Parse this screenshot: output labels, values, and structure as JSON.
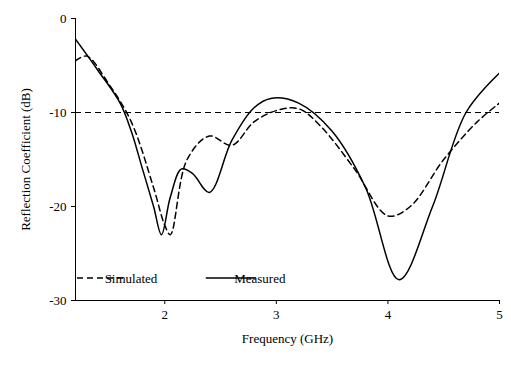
{
  "chart_data": {
    "type": "line",
    "x_label": "Frequency (GHz)",
    "y_label": "Reflection Coefficient (dB)",
    "xlim": [
      1.2,
      5
    ],
    "xticks": [
      2,
      3,
      4,
      5
    ],
    "ylim": [
      -30,
      0
    ],
    "yticks": [
      0,
      -10,
      -20,
      -30
    ],
    "legend": "lower left",
    "reference_lines": [
      {
        "y": -10,
        "color": "#000000",
        "line_style": "dashed"
      }
    ],
    "series": [
      {
        "name": "Simulated",
        "color": "#000000",
        "line_style": "dashed",
        "x": [
          1.2,
          1.3,
          1.5,
          1.7,
          1.9,
          2.0,
          2.05,
          2.2,
          2.4,
          2.6,
          2.8,
          3.0,
          3.2,
          3.4,
          3.7,
          4.0,
          4.2,
          4.5,
          4.8,
          5.0
        ],
        "values": [
          -4.5,
          -4.0,
          -7.0,
          -11.0,
          -18.0,
          -22.0,
          -23.0,
          -15.0,
          -12.5,
          -13.5,
          -11.0,
          -9.8,
          -9.6,
          -11.5,
          -16.0,
          -21.0,
          -20.0,
          -15.0,
          -11.0,
          -9.0
        ]
      },
      {
        "name": "Measured",
        "color": "#000000",
        "line_style": "solid",
        "x": [
          1.2,
          1.4,
          1.6,
          1.7,
          1.8,
          1.9,
          1.97,
          2.05,
          2.15,
          2.25,
          2.4,
          2.6,
          2.8,
          2.95,
          3.2,
          3.5,
          3.8,
          4.1,
          4.4,
          4.7,
          5.0
        ],
        "values": [
          -2.2,
          -5.5,
          -9.0,
          -12.0,
          -16.0,
          -20.0,
          -23.0,
          -19.0,
          -16.0,
          -16.5,
          -18.5,
          -13.0,
          -9.5,
          -8.5,
          -9.0,
          -12.0,
          -18.0,
          -27.8,
          -20.0,
          -10.0,
          -5.8
        ]
      }
    ]
  }
}
